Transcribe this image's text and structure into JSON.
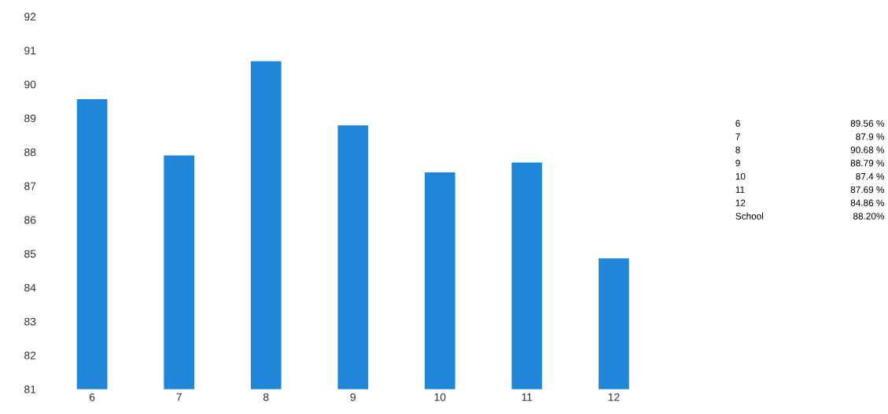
{
  "chart_data": {
    "type": "bar",
    "categories": [
      "6",
      "7",
      "8",
      "9",
      "10",
      "11",
      "12"
    ],
    "values": [
      89.56,
      87.9,
      90.68,
      88.79,
      87.4,
      87.69,
      84.86
    ],
    "annotations": [
      "6",
      "89.56 %",
      "7",
      "87.9 %",
      "8",
      "90.68 %",
      "9",
      "88.79 %",
      "10",
      "87.4 %",
      "11",
      "87.69 %",
      "12",
      "84.86 %",
      "School",
      "88.20%"
    ],
    "color": "#1f86d8",
    "ylim": [
      81,
      92
    ],
    "yticks": [
      81,
      82,
      83,
      84,
      85,
      86,
      87,
      88,
      89,
      90,
      91,
      92
    ],
    "grid": false,
    "legend": false
  }
}
